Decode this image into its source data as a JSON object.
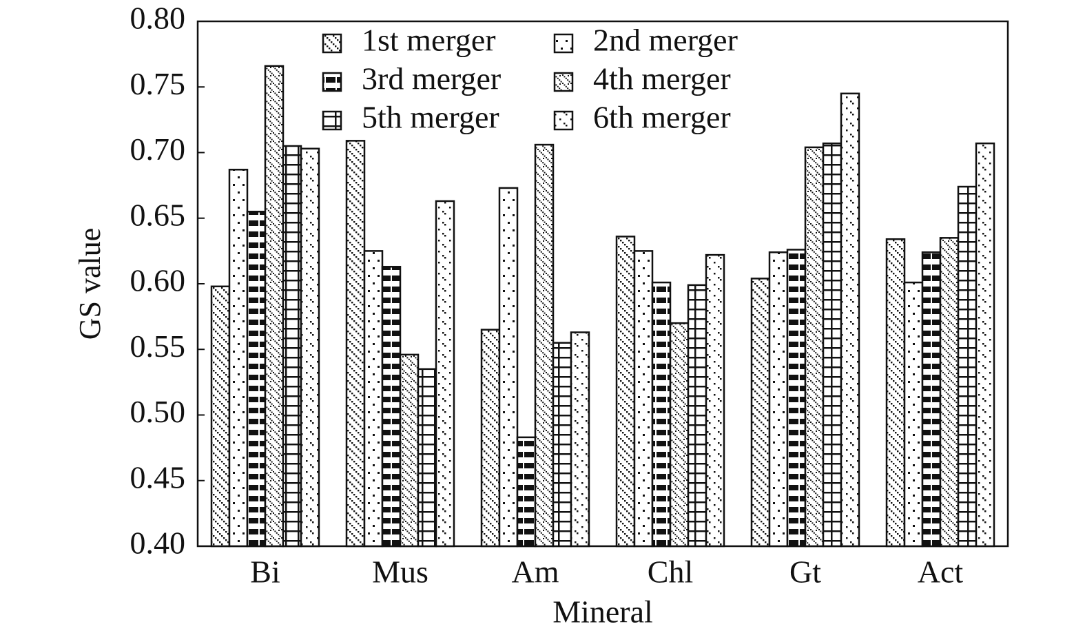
{
  "chart_data": {
    "type": "bar",
    "xlabel": "Mineral",
    "ylabel": "GS value",
    "categories": [
      "Bi",
      "Mus",
      "Am",
      "Chl",
      "Gt",
      "Act"
    ],
    "series": [
      {
        "name": "1st merger",
        "color": "#111111",
        "values": [
          0.598,
          0.709,
          0.565,
          0.636,
          0.604,
          0.634
        ]
      },
      {
        "name": "2nd merger",
        "color": "#111111",
        "values": [
          0.687,
          0.625,
          0.673,
          0.625,
          0.624,
          0.601
        ]
      },
      {
        "name": "3rd merger",
        "color": "#111111",
        "values": [
          0.655,
          0.613,
          0.483,
          0.601,
          0.626,
          0.624
        ]
      },
      {
        "name": "4th merger",
        "color": "#111111",
        "values": [
          0.766,
          0.546,
          0.706,
          0.57,
          0.704,
          0.635
        ]
      },
      {
        "name": "5th merger",
        "color": "#111111",
        "values": [
          0.705,
          0.535,
          0.555,
          0.599,
          0.707,
          0.674
        ]
      },
      {
        "name": "6th merger",
        "color": "#111111",
        "values": [
          0.703,
          0.663,
          0.563,
          0.622,
          0.745,
          0.707
        ]
      }
    ],
    "ylim": [
      0.4,
      0.8
    ],
    "yticks": [
      {
        "value": 0.4,
        "label": "0.40"
      },
      {
        "value": 0.45,
        "label": "0.45"
      },
      {
        "value": 0.5,
        "label": "0.50"
      },
      {
        "value": 0.55,
        "label": "0.55"
      },
      {
        "value": 0.6,
        "label": "0.60"
      },
      {
        "value": 0.65,
        "label": "0.65"
      },
      {
        "value": 0.7,
        "label": "0.70"
      },
      {
        "value": 0.75,
        "label": "0.75"
      },
      {
        "value": 0.8,
        "label": "0.80"
      }
    ],
    "grid": false,
    "legend": "upper center"
  }
}
